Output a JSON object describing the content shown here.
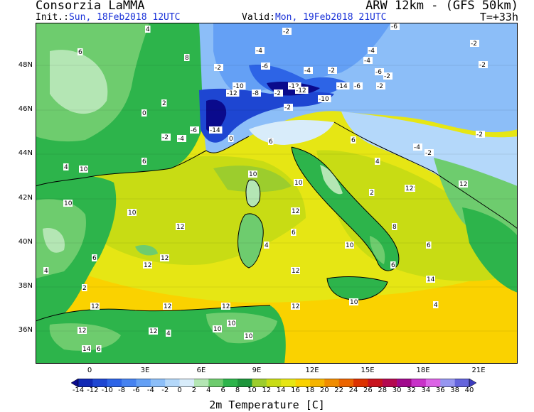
{
  "header": {
    "source": "Consorzia LaMMA",
    "model": "ARW 12km - (GFS 50km)",
    "init_label": "Init.:",
    "init_value": "Sun, 18Feb2018 12UTC",
    "valid_label": "Valid:",
    "valid_value": "Mon, 19Feb2018 21UTC",
    "lead_time": "T=+33h"
  },
  "axes": {
    "lat_labels": [
      "48N",
      "46N",
      "44N",
      "42N",
      "40N",
      "38N",
      "36N"
    ],
    "lon_labels": [
      "0",
      "3E",
      "6E",
      "9E",
      "12E",
      "15E",
      "18E",
      "21E"
    ]
  },
  "colorbar": {
    "title": "2m Temperature [C]",
    "ticks": [
      "-14",
      "-12",
      "-10",
      "-8",
      "-6",
      "-4",
      "-2",
      "0",
      "2",
      "4",
      "6",
      "8",
      "10",
      "12",
      "14",
      "16",
      "18",
      "20",
      "22",
      "24",
      "26",
      "28",
      "30",
      "32",
      "34",
      "36",
      "38",
      "40"
    ],
    "colors": [
      "#0a0a8c",
      "#1028b4",
      "#1e46d2",
      "#2d64e6",
      "#4682f0",
      "#64a0f5",
      "#8cbef8",
      "#b4d8fa",
      "#d8ecfa",
      "#e8f6ec",
      "#b4e6b4",
      "#6ecc6e",
      "#2db44b",
      "#1e963c",
      "#9ccd2d",
      "#c8dc14",
      "#e6e614",
      "#fad200",
      "#f5b400",
      "#f08c00",
      "#eb6400",
      "#dc3200",
      "#c8141e",
      "#b40a50",
      "#a00a8c",
      "#c832c8",
      "#dc64e6",
      "#9696f0",
      "#6464dc",
      "#3c3cbe"
    ],
    "colors_mid_note": "",
    "palette": [
      "#0a0a8c",
      "#1028b4",
      "#1e46d2",
      "#2d64e6",
      "#4682f0",
      "#64a0f5",
      "#8cbef8",
      "#b4d8fa",
      "#d8ecfa",
      "#b4e6b4",
      "#6ecc6e",
      "#2db44b",
      "#1e963c",
      "#9ccd2d",
      "#c8dc14",
      "#e6e614",
      "#fad200",
      "#f5b400",
      "#f08c00",
      "#eb6400",
      "#dc3200",
      "#c8141e",
      "#b40a50",
      "#a00a8c",
      "#c832c8",
      "#dc64e6",
      "#9696f0",
      "#6464dc",
      "#3c3cbe"
    ]
  },
  "map_labels": [
    {
      "t": "4"
    },
    {
      "t": "-2"
    },
    {
      "t": "-6"
    },
    {
      "t": "6"
    },
    {
      "t": "-4"
    },
    {
      "t": "-2"
    },
    {
      "t": "-4"
    },
    {
      "t": "-2"
    },
    {
      "t": "-4"
    },
    {
      "t": "-2"
    },
    {
      "t": "-6"
    },
    {
      "t": "-2"
    },
    {
      "t": "8"
    },
    {
      "t": "-6"
    },
    {
      "t": "-4"
    },
    {
      "t": "-2"
    },
    {
      "t": "-10"
    },
    {
      "t": "-14"
    },
    {
      "t": "-6"
    },
    {
      "t": "-2"
    },
    {
      "t": "-12"
    },
    {
      "t": "-8"
    },
    {
      "t": "-12"
    },
    {
      "t": "-2"
    },
    {
      "t": "-12"
    },
    {
      "t": "-10"
    },
    {
      "t": "2"
    },
    {
      "t": "0"
    },
    {
      "t": "-2"
    },
    {
      "t": "-14"
    },
    {
      "t": "-6"
    },
    {
      "t": "-4"
    },
    {
      "t": "-2"
    },
    {
      "t": "0"
    },
    {
      "t": "6"
    },
    {
      "t": "-4"
    },
    {
      "t": "-2"
    },
    {
      "t": "-2"
    },
    {
      "t": "6"
    },
    {
      "t": "4"
    },
    {
      "t": "6"
    },
    {
      "t": "4"
    },
    {
      "t": "10"
    },
    {
      "t": "10"
    },
    {
      "t": "10"
    },
    {
      "t": "12"
    },
    {
      "t": "10"
    },
    {
      "t": "10"
    },
    {
      "t": "12"
    },
    {
      "t": "6"
    },
    {
      "t": "4"
    },
    {
      "t": "2"
    },
    {
      "t": "12"
    },
    {
      "t": "12"
    },
    {
      "t": "10"
    },
    {
      "t": "6"
    },
    {
      "t": "6"
    },
    {
      "t": "12"
    },
    {
      "t": "8"
    },
    {
      "t": "4"
    },
    {
      "t": "2"
    },
    {
      "t": "12"
    },
    {
      "t": "12"
    },
    {
      "t": "6"
    },
    {
      "t": "10"
    },
    {
      "t": "14"
    },
    {
      "t": "12"
    },
    {
      "t": "12"
    },
    {
      "t": "4"
    },
    {
      "t": "12"
    },
    {
      "t": "12"
    },
    {
      "t": "10"
    },
    {
      "t": "12"
    },
    {
      "t": "12"
    },
    {
      "t": "10"
    },
    {
      "t": "14"
    },
    {
      "t": "6"
    },
    {
      "t": "4"
    },
    {
      "t": "10"
    },
    {
      "t": "12"
    }
  ]
}
